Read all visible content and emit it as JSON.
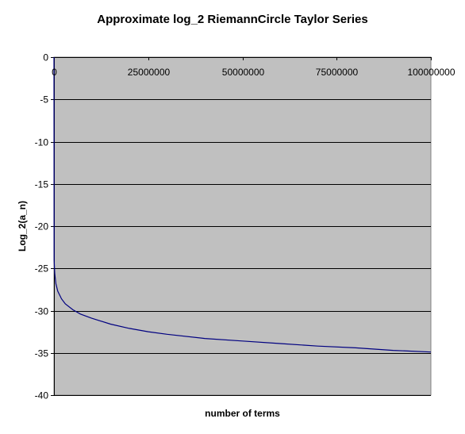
{
  "chart_data": {
    "type": "line",
    "title": "Approximate log_2 RiemannCircle Taylor Series",
    "xlabel": "number of terms",
    "ylabel": "Log_2(a_n)",
    "xlim": [
      0,
      100000000
    ],
    "ylim": [
      -40,
      0
    ],
    "x_ticks": [
      0,
      25000000,
      50000000,
      75000000,
      100000000
    ],
    "x_tick_labels": [
      "0",
      "25000000",
      "50000000",
      "75000000",
      "100000000"
    ],
    "y_ticks": [
      0,
      -5,
      -10,
      -15,
      -20,
      -25,
      -30,
      -35,
      -40
    ],
    "y_tick_labels": [
      "0",
      "-5",
      "-10",
      "-15",
      "-20",
      "-25",
      "-30",
      "-35",
      "-40"
    ],
    "x_axis_position": "top",
    "grid": true,
    "legend": "none",
    "colors": {
      "plot_background": "#c0c0c0",
      "series_line": "#000080",
      "gridline": "#000000",
      "page_background": "#ffffff"
    },
    "series": [
      {
        "x": [
          0,
          50000,
          200000,
          500000,
          1000000,
          2000000,
          3000000,
          5000000,
          7000000,
          10000000,
          15000000,
          20000000,
          25000000,
          30000000,
          40000000,
          50000000,
          60000000,
          70000000,
          80000000,
          90000000,
          100000000
        ],
        "y": [
          0,
          -24.0,
          -25.6,
          -26.8,
          -27.7,
          -28.6,
          -29.2,
          -29.9,
          -30.4,
          -30.9,
          -31.6,
          -32.1,
          -32.5,
          -32.8,
          -33.3,
          -33.6,
          -33.9,
          -34.2,
          -34.4,
          -34.7,
          -34.9
        ]
      }
    ]
  }
}
